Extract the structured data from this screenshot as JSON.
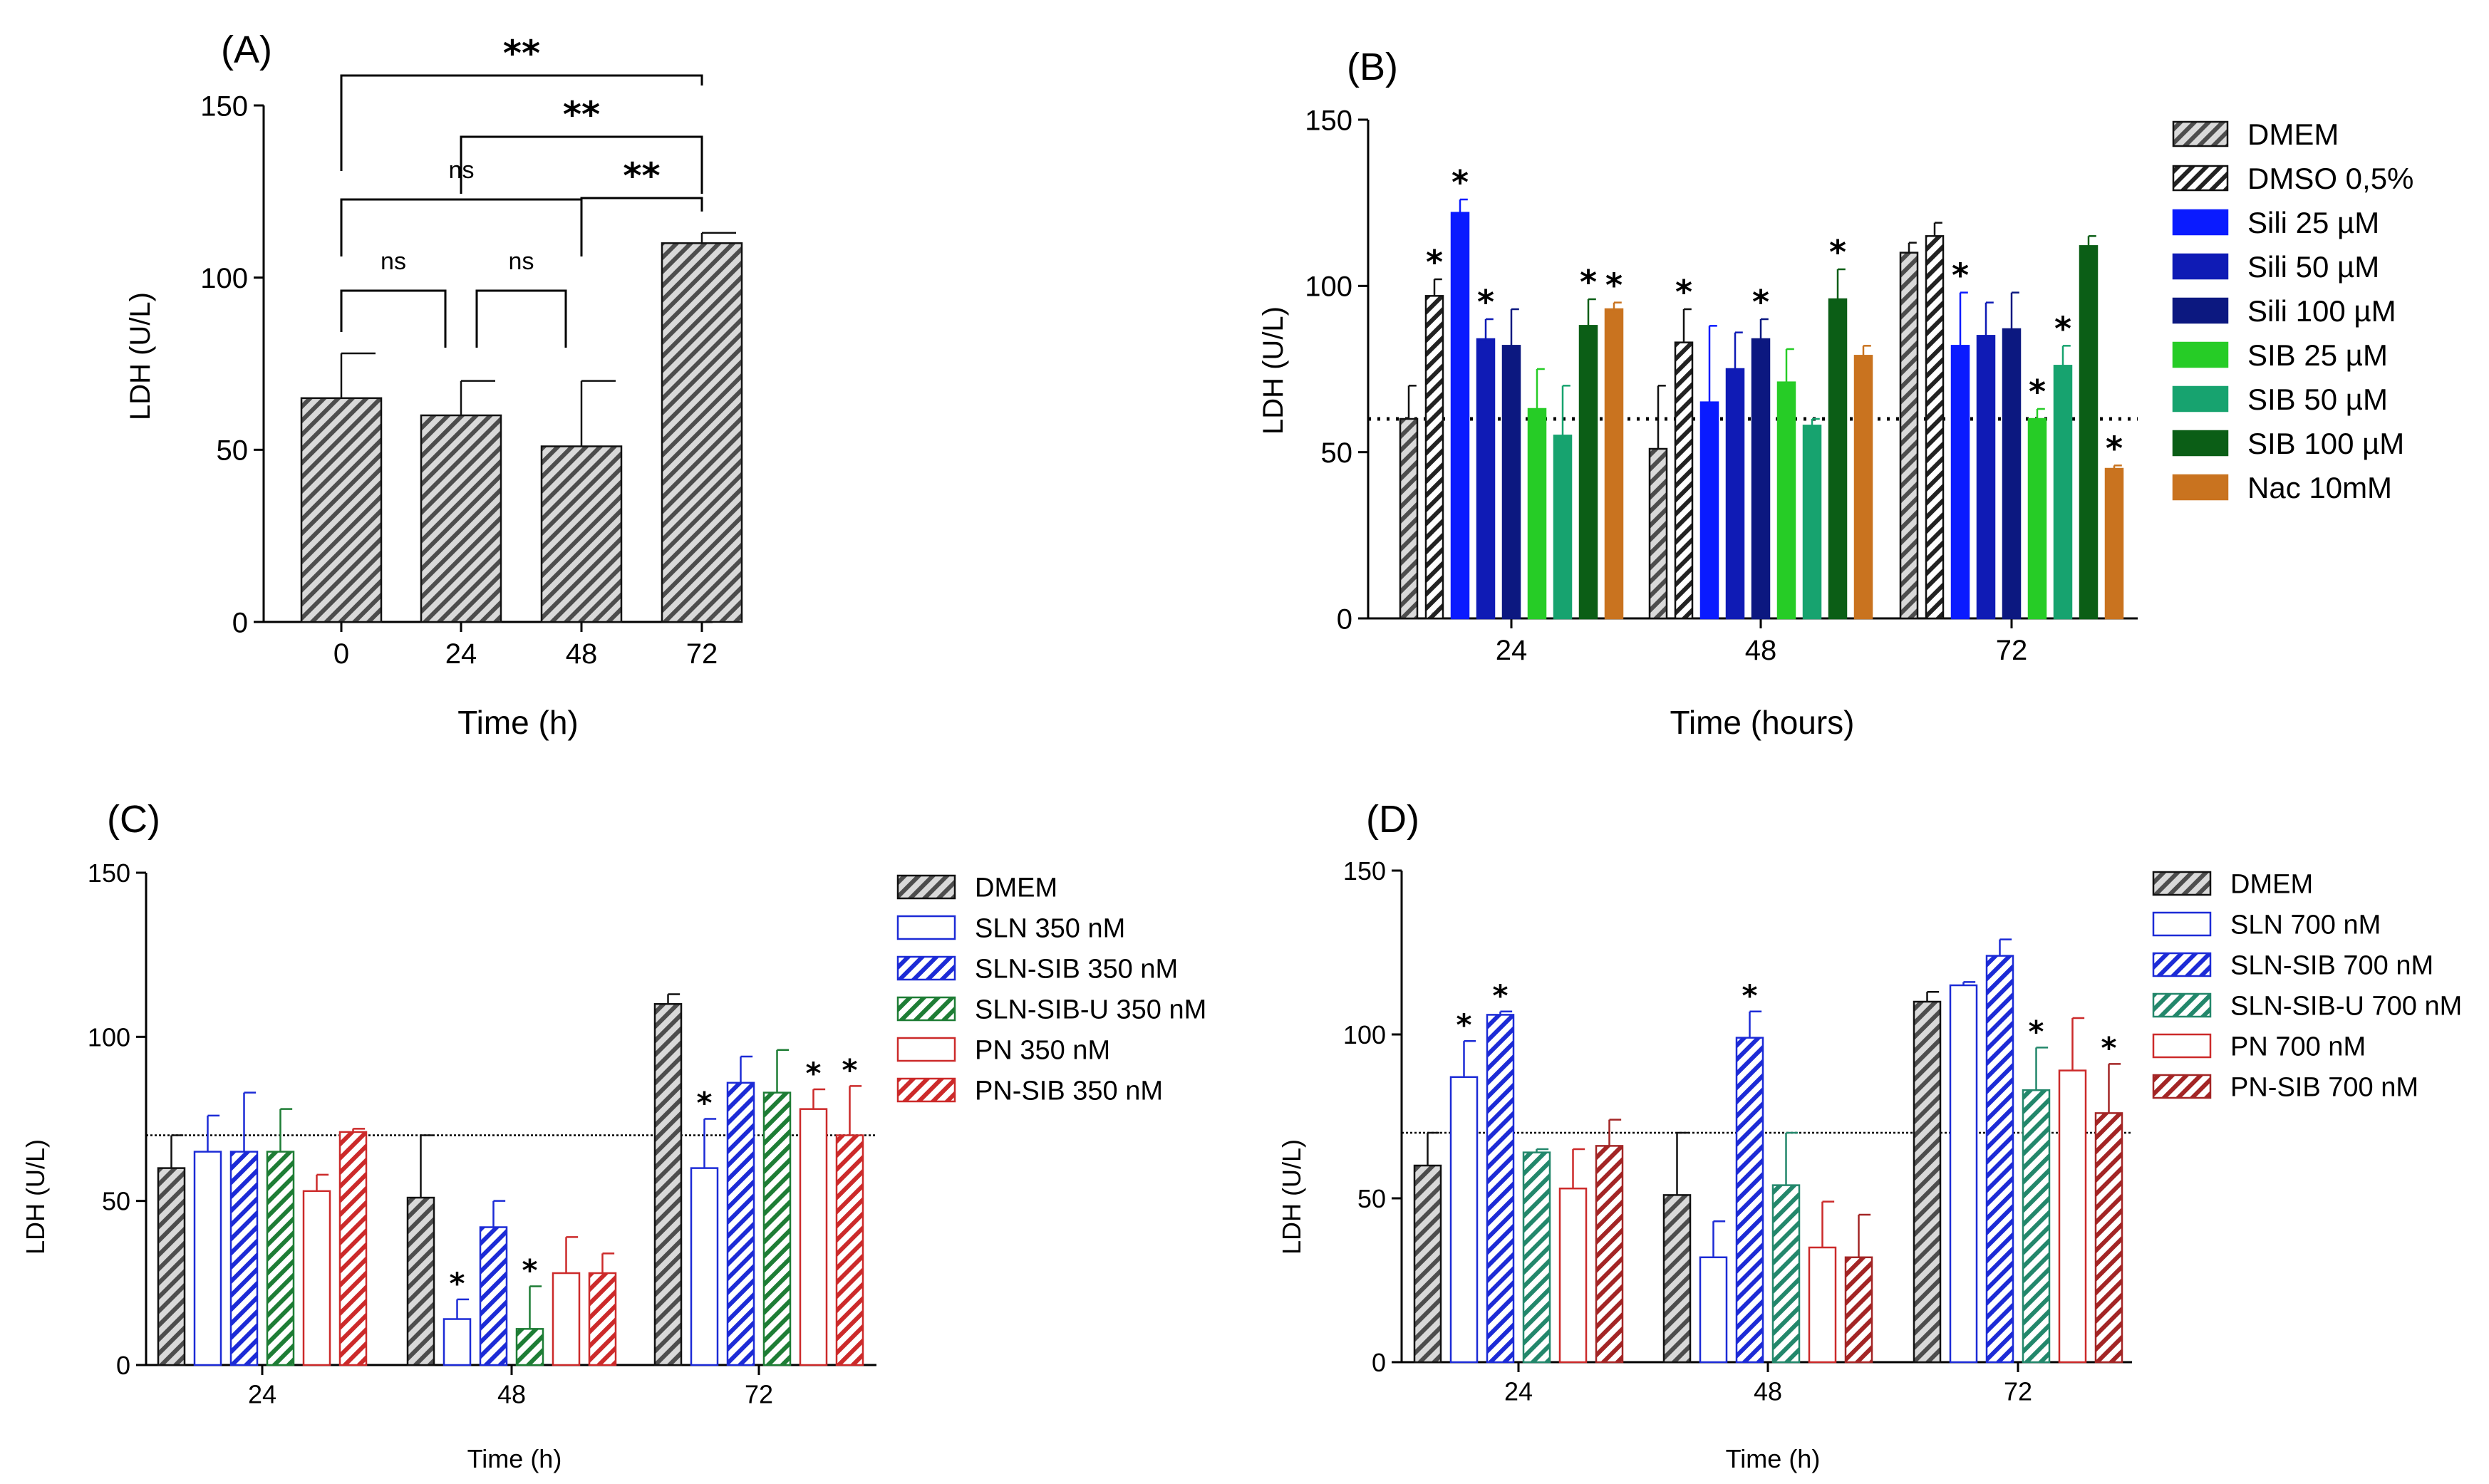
{
  "colors": {
    "dmem": "#a6a6a6",
    "sili25": "#0a1bff",
    "sili50": "#0f1bb5",
    "sili100": "#0c1880",
    "sib25": "#26cc26",
    "sib50": "#17a36f",
    "sib100": "#0b5e16",
    "nac": "#c9731f",
    "blue": "#1c2bd6",
    "green": "#1e7d35",
    "red": "#cc2a2a",
    "teal": "#23876b",
    "darkred": "#a32525"
  },
  "chart_data": [
    {
      "id": "A",
      "type": "bar",
      "panel_label": "(A)",
      "xlabel": "Time (h)",
      "ylabel": "LDH (U/L)",
      "ylim": [
        0,
        150
      ],
      "yticks": [
        "0",
        "50",
        "100",
        "150"
      ],
      "categories": [
        "0",
        "24",
        "48",
        "72"
      ],
      "series": [
        {
          "name": "LDH",
          "values": [
            65,
            60,
            51,
            110
          ],
          "errors": [
            13,
            10,
            19,
            3
          ],
          "color_key": "dmem",
          "style": "hatch"
        }
      ],
      "comparisons": [
        {
          "from": 0,
          "to": 1,
          "label": "ns",
          "level": 1
        },
        {
          "from": 1,
          "to": 2,
          "label": "ns",
          "level": 1
        },
        {
          "from": 0,
          "to": 2,
          "label": "ns",
          "level": 2
        },
        {
          "from": 2,
          "to": 3,
          "label": "**",
          "level": 3
        },
        {
          "from": 1,
          "to": 3,
          "label": "**",
          "level": 4
        },
        {
          "from": 0,
          "to": 3,
          "label": "**",
          "level": 5
        }
      ]
    },
    {
      "id": "B",
      "type": "bar",
      "panel_label": "(B)",
      "xlabel": "Time (hours)",
      "ylabel": "LDH (U/L)",
      "ylim": [
        0,
        150
      ],
      "yticks": [
        "0",
        "50",
        "100",
        "150"
      ],
      "reference_line": 60,
      "categories": [
        "24",
        "48",
        "72"
      ],
      "series": [
        {
          "name": "DMEM",
          "values": [
            60,
            51,
            110
          ],
          "errors": [
            10,
            19,
            3
          ],
          "color_key": "dmem",
          "style": "hatch",
          "stars": [
            false,
            false,
            false
          ]
        },
        {
          "name": "DMSO 0,5%",
          "values": [
            97,
            83,
            115
          ],
          "errors": [
            5,
            10,
            4
          ],
          "color_key": "white",
          "style": "hatch",
          "stars": [
            true,
            true,
            false
          ]
        },
        {
          "name": "Sili 25 µM",
          "values": [
            122,
            65,
            82
          ],
          "errors": [
            4,
            23,
            16
          ],
          "color_key": "sili25",
          "style": "solid",
          "stars": [
            true,
            false,
            true
          ]
        },
        {
          "name": "Sili 50 µM",
          "values": [
            84,
            75,
            85
          ],
          "errors": [
            6,
            11,
            10
          ],
          "color_key": "sili50",
          "style": "solid",
          "stars": [
            true,
            false,
            false
          ]
        },
        {
          "name": "Sili 100 µM",
          "values": [
            82,
            84,
            87
          ],
          "errors": [
            11,
            6,
            11
          ],
          "color_key": "sili100",
          "style": "solid",
          "stars": [
            false,
            true,
            false
          ]
        },
        {
          "name": "SIB 25 µM",
          "values": [
            63,
            71,
            60
          ],
          "errors": [
            12,
            10,
            3
          ],
          "color_key": "sib25",
          "style": "solid",
          "stars": [
            false,
            false,
            true
          ]
        },
        {
          "name": "SIB 50 µM",
          "values": [
            55,
            58,
            76
          ],
          "errors": [
            15,
            2,
            6
          ],
          "color_key": "sib50",
          "style": "solid",
          "stars": [
            false,
            false,
            true
          ]
        },
        {
          "name": "SIB 100 µM",
          "values": [
            88,
            96,
            112
          ],
          "errors": [
            8,
            9,
            3
          ],
          "color_key": "sib100",
          "style": "solid",
          "stars": [
            true,
            true,
            false
          ]
        },
        {
          "name": "Nac 10mM",
          "values": [
            93,
            79,
            45
          ],
          "errors": [
            2,
            3,
            1
          ],
          "color_key": "nac",
          "style": "solid",
          "stars": [
            true,
            false,
            true
          ]
        }
      ]
    },
    {
      "id": "C",
      "type": "bar",
      "panel_label": "(C)",
      "xlabel": "Time (h)",
      "ylabel": "LDH (U/L)",
      "ylim": [
        0,
        150
      ],
      "yticks": [
        "0",
        "50",
        "100",
        "150"
      ],
      "reference_line": 70,
      "categories": [
        "24",
        "48",
        "72"
      ],
      "series": [
        {
          "name": "DMEM",
          "values": [
            60,
            51,
            110
          ],
          "errors": [
            10,
            19,
            3
          ],
          "color_key": "dmem",
          "style": "hatch",
          "stars": [
            false,
            false,
            false
          ]
        },
        {
          "name": "SLN 350 nM",
          "values": [
            65,
            14,
            60
          ],
          "errors": [
            11,
            6,
            15
          ],
          "color_key": "blue",
          "style": "outline",
          "stars": [
            false,
            true,
            true
          ]
        },
        {
          "name": "SLN-SIB 350 nM",
          "values": [
            65,
            42,
            86
          ],
          "errors": [
            18,
            8,
            8
          ],
          "color_key": "blue",
          "style": "hatch",
          "stars": [
            false,
            false,
            false
          ]
        },
        {
          "name": "SLN-SIB-U 350 nM",
          "values": [
            65,
            11,
            83
          ],
          "errors": [
            13,
            13,
            13
          ],
          "color_key": "green",
          "style": "hatch",
          "stars": [
            false,
            true,
            false
          ]
        },
        {
          "name": "PN 350 nM",
          "values": [
            53,
            28,
            78
          ],
          "errors": [
            5,
            11,
            6
          ],
          "color_key": "red",
          "style": "outline",
          "stars": [
            false,
            false,
            true
          ]
        },
        {
          "name": "PN-SIB 350 nM",
          "values": [
            71,
            28,
            70
          ],
          "errors": [
            1,
            6,
            15
          ],
          "color_key": "red",
          "style": "hatch",
          "stars": [
            false,
            false,
            true
          ]
        }
      ]
    },
    {
      "id": "D",
      "type": "bar",
      "panel_label": "(D)",
      "xlabel": "Time (h)",
      "ylabel": "LDH (U/L)",
      "ylim": [
        0,
        150
      ],
      "yticks": [
        "0",
        "50",
        "100",
        "150"
      ],
      "reference_line": 70,
      "categories": [
        "24",
        "48",
        "72"
      ],
      "series": [
        {
          "name": "DMEM",
          "values": [
            60,
            51,
            110
          ],
          "errors": [
            10,
            19,
            3
          ],
          "color_key": "dmem",
          "style": "hatch",
          "stars": [
            false,
            false,
            false
          ]
        },
        {
          "name": "SLN 700 nM",
          "values": [
            87,
            32,
            115
          ],
          "errors": [
            11,
            11,
            1
          ],
          "color_key": "blue",
          "style": "outline",
          "stars": [
            true,
            false,
            false
          ]
        },
        {
          "name": "SLN-SIB 700 nM",
          "values": [
            106,
            99,
            124
          ],
          "errors": [
            1,
            8,
            5
          ],
          "color_key": "blue",
          "style": "hatch",
          "stars": [
            true,
            true,
            false
          ]
        },
        {
          "name": "SLN-SIB-U 700 nM",
          "values": [
            64,
            54,
            83
          ],
          "errors": [
            1,
            16,
            13
          ],
          "color_key": "teal",
          "style": "hatch",
          "stars": [
            false,
            false,
            true
          ]
        },
        {
          "name": "PN 700 nM",
          "values": [
            53,
            35,
            89
          ],
          "errors": [
            12,
            14,
            16
          ],
          "color_key": "red",
          "style": "outline",
          "stars": [
            false,
            false,
            false
          ]
        },
        {
          "name": "PN-SIB 700 nM",
          "values": [
            66,
            32,
            76
          ],
          "errors": [
            8,
            13,
            15
          ],
          "color_key": "darkred",
          "style": "hatch",
          "stars": [
            false,
            false,
            true
          ]
        }
      ]
    }
  ]
}
